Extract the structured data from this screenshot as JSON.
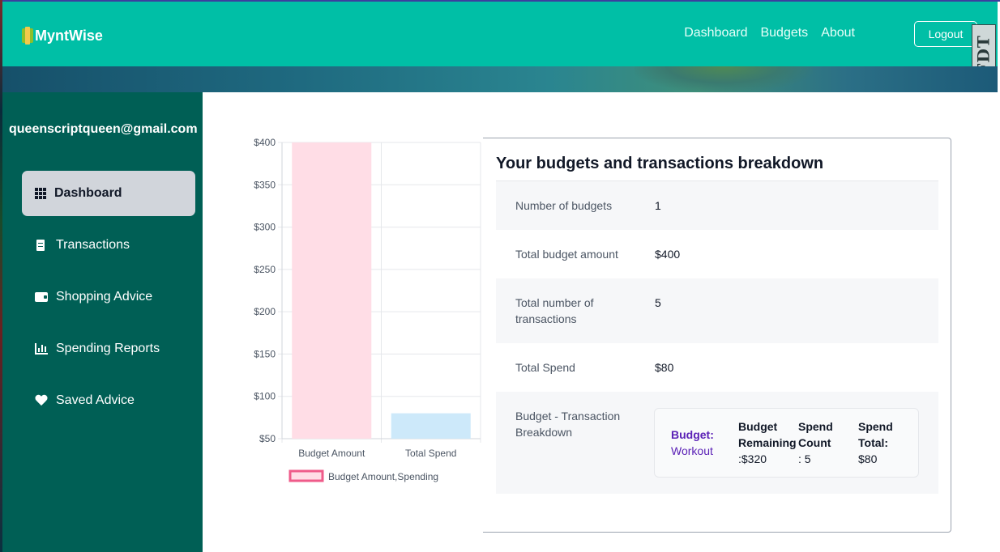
{
  "app": {
    "brand": "MyntWise"
  },
  "nav": {
    "links": [
      "Dashboard",
      "Budgets",
      "About"
    ],
    "logout_label": "Logout",
    "badge_text": "FDT"
  },
  "sidebar": {
    "user_email": "queenscriptqueen@gmail.com",
    "items": [
      {
        "label": "Dashboard",
        "icon": "grid-icon",
        "active": true
      },
      {
        "label": "Transactions",
        "icon": "receipt-icon",
        "active": false
      },
      {
        "label": "Shopping Advice",
        "icon": "wallet-icon",
        "active": false
      },
      {
        "label": "Spending Reports",
        "icon": "bar-chart-icon",
        "active": false
      },
      {
        "label": "Saved Advice",
        "icon": "heart-icon",
        "active": false
      }
    ]
  },
  "chart_data": {
    "type": "bar",
    "categories": [
      "Budget Amount",
      "Total Spend"
    ],
    "series": [
      {
        "name": "Budget Amount,Spending",
        "values": [
          400,
          80
        ]
      }
    ],
    "bar_colors": [
      "#ffdde6",
      "#cde9fa"
    ],
    "legend_border_color": "#ef5b8a",
    "ylim": [
      50,
      400
    ],
    "yticks": [
      50,
      100,
      150,
      200,
      250,
      300,
      350,
      400
    ],
    "tick_prefix": "$",
    "legend_position": "bottom",
    "grid": true
  },
  "breakdown": {
    "title": "Your budgets and transactions breakdown",
    "rows": [
      {
        "label": "Number of budgets",
        "value": "1"
      },
      {
        "label": "Total budget amount",
        "value": "$400"
      },
      {
        "label": "Total number of transactions",
        "value": "5"
      },
      {
        "label": "Total Spend",
        "value": "$80"
      },
      {
        "label": "Budget - Transaction Breakdown",
        "value": ""
      }
    ],
    "budget_item": {
      "name_label": "Budget:",
      "name_value": "Workout",
      "remaining_label": "Budget Remaining",
      "remaining_value": ":$320",
      "count_label": "Spend Count",
      "count_value": ": 5",
      "total_label": "Spend Total:",
      "total_value": "$80"
    }
  },
  "colors": {
    "navbar": "#00bfa6",
    "sidebar": "#005f55",
    "active_item": "#d1d5db",
    "accent_purple": "#5b21b6"
  }
}
